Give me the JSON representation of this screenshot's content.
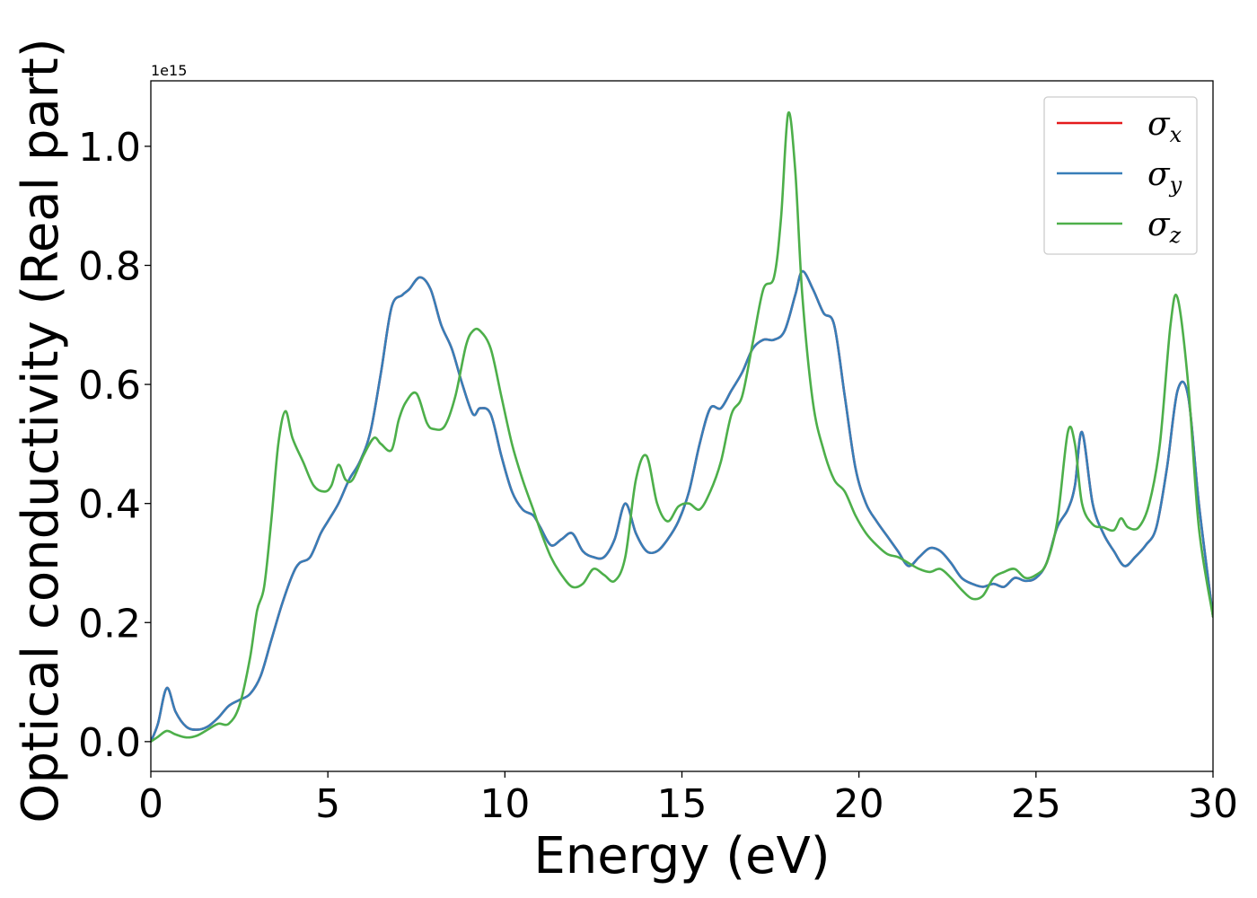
{
  "chart_data": {
    "type": "line",
    "xlabel": "Energy (eV)",
    "ylabel": "Optical conductivity (Real part)",
    "y_offset_label": "1e15",
    "xlim": [
      0,
      30
    ],
    "ylim": [
      -0.05,
      1.11
    ],
    "x_ticks": [
      0,
      5,
      10,
      15,
      20,
      25,
      30
    ],
    "x_tick_labels": [
      "0",
      "5",
      "10",
      "15",
      "20",
      "25",
      "30"
    ],
    "y_ticks": [
      0.0,
      0.2,
      0.4,
      0.6,
      0.8,
      1.0
    ],
    "y_tick_labels": [
      "0.0",
      "0.2",
      "0.4",
      "0.6",
      "0.8",
      "1.0"
    ],
    "grid": false,
    "legend_position": "top-right",
    "series": [
      {
        "name": "σx",
        "legend_symbol": "σ",
        "legend_subscript": "x",
        "color": "#e41a1c",
        "x": [
          0,
          0.2,
          0.45,
          0.7,
          1.0,
          1.3,
          1.6,
          1.9,
          2.2,
          2.5,
          2.8,
          3.1,
          3.4,
          3.7,
          4.0,
          4.2,
          4.5,
          4.8,
          5.0,
          5.3,
          5.6,
          5.9,
          6.2,
          6.5,
          6.8,
          7.1,
          7.3,
          7.6,
          7.9,
          8.2,
          8.5,
          8.8,
          9.1,
          9.3,
          9.6,
          9.9,
          10.2,
          10.5,
          10.8,
          11.0,
          11.3,
          11.6,
          11.9,
          12.2,
          12.5,
          12.8,
          13.1,
          13.4,
          13.7,
          14.0,
          14.3,
          14.6,
          14.9,
          15.2,
          15.5,
          15.8,
          16.1,
          16.4,
          16.7,
          17.0,
          17.3,
          17.6,
          17.9,
          18.2,
          18.4,
          18.7,
          19.0,
          19.3,
          19.6,
          19.9,
          20.2,
          20.5,
          20.8,
          21.1,
          21.4,
          21.7,
          22.0,
          22.3,
          22.6,
          22.9,
          23.2,
          23.5,
          23.8,
          24.1,
          24.4,
          24.7,
          25.0,
          25.3,
          25.6,
          25.9,
          26.1,
          26.3,
          26.6,
          26.9,
          27.2,
          27.5,
          27.8,
          28.1,
          28.4,
          28.7,
          29.0,
          29.3,
          29.6,
          30.0
        ],
        "values": [
          0.0,
          0.03,
          0.09,
          0.05,
          0.025,
          0.02,
          0.025,
          0.04,
          0.06,
          0.07,
          0.08,
          0.11,
          0.17,
          0.23,
          0.28,
          0.3,
          0.31,
          0.35,
          0.37,
          0.4,
          0.44,
          0.47,
          0.52,
          0.62,
          0.73,
          0.75,
          0.76,
          0.78,
          0.76,
          0.7,
          0.66,
          0.6,
          0.55,
          0.56,
          0.55,
          0.48,
          0.42,
          0.39,
          0.38,
          0.36,
          0.33,
          0.34,
          0.35,
          0.32,
          0.31,
          0.31,
          0.34,
          0.4,
          0.35,
          0.32,
          0.32,
          0.34,
          0.37,
          0.42,
          0.5,
          0.56,
          0.56,
          0.59,
          0.62,
          0.66,
          0.675,
          0.675,
          0.69,
          0.75,
          0.79,
          0.76,
          0.72,
          0.7,
          0.58,
          0.46,
          0.4,
          0.37,
          0.345,
          0.32,
          0.295,
          0.31,
          0.325,
          0.32,
          0.3,
          0.275,
          0.265,
          0.26,
          0.265,
          0.26,
          0.275,
          0.27,
          0.275,
          0.3,
          0.36,
          0.39,
          0.43,
          0.52,
          0.4,
          0.35,
          0.32,
          0.295,
          0.31,
          0.33,
          0.36,
          0.46,
          0.59,
          0.58,
          0.4,
          0.21
        ]
      },
      {
        "name": "σy",
        "legend_symbol": "σ",
        "legend_subscript": "y",
        "color": "#377eb8",
        "x": [
          0,
          0.2,
          0.45,
          0.7,
          1.0,
          1.3,
          1.6,
          1.9,
          2.2,
          2.5,
          2.8,
          3.1,
          3.4,
          3.7,
          4.0,
          4.2,
          4.5,
          4.8,
          5.0,
          5.3,
          5.6,
          5.9,
          6.2,
          6.5,
          6.8,
          7.1,
          7.3,
          7.6,
          7.9,
          8.2,
          8.5,
          8.8,
          9.1,
          9.3,
          9.6,
          9.9,
          10.2,
          10.5,
          10.8,
          11.0,
          11.3,
          11.6,
          11.9,
          12.2,
          12.5,
          12.8,
          13.1,
          13.4,
          13.7,
          14.0,
          14.3,
          14.6,
          14.9,
          15.2,
          15.5,
          15.8,
          16.1,
          16.4,
          16.7,
          17.0,
          17.3,
          17.6,
          17.9,
          18.2,
          18.4,
          18.7,
          19.0,
          19.3,
          19.6,
          19.9,
          20.2,
          20.5,
          20.8,
          21.1,
          21.4,
          21.7,
          22.0,
          22.3,
          22.6,
          22.9,
          23.2,
          23.5,
          23.8,
          24.1,
          24.4,
          24.7,
          25.0,
          25.3,
          25.6,
          25.9,
          26.1,
          26.3,
          26.6,
          26.9,
          27.2,
          27.5,
          27.8,
          28.1,
          28.4,
          28.7,
          29.0,
          29.3,
          29.6,
          30.0
        ],
        "values": [
          0.0,
          0.03,
          0.09,
          0.05,
          0.025,
          0.02,
          0.025,
          0.04,
          0.06,
          0.07,
          0.08,
          0.11,
          0.17,
          0.23,
          0.28,
          0.3,
          0.31,
          0.35,
          0.37,
          0.4,
          0.44,
          0.47,
          0.52,
          0.62,
          0.73,
          0.75,
          0.76,
          0.78,
          0.76,
          0.7,
          0.66,
          0.6,
          0.55,
          0.56,
          0.55,
          0.48,
          0.42,
          0.39,
          0.38,
          0.36,
          0.33,
          0.34,
          0.35,
          0.32,
          0.31,
          0.31,
          0.34,
          0.4,
          0.35,
          0.32,
          0.32,
          0.34,
          0.37,
          0.42,
          0.5,
          0.56,
          0.56,
          0.59,
          0.62,
          0.66,
          0.675,
          0.675,
          0.69,
          0.75,
          0.79,
          0.76,
          0.72,
          0.7,
          0.58,
          0.46,
          0.4,
          0.37,
          0.345,
          0.32,
          0.295,
          0.31,
          0.325,
          0.32,
          0.3,
          0.275,
          0.265,
          0.26,
          0.265,
          0.26,
          0.275,
          0.27,
          0.275,
          0.3,
          0.36,
          0.39,
          0.43,
          0.52,
          0.4,
          0.35,
          0.32,
          0.295,
          0.31,
          0.33,
          0.36,
          0.46,
          0.59,
          0.58,
          0.4,
          0.21
        ]
      },
      {
        "name": "σz",
        "legend_symbol": "σ",
        "legend_subscript": "z",
        "color": "#4daf4a",
        "x": [
          0,
          0.2,
          0.45,
          0.7,
          1.0,
          1.3,
          1.6,
          1.9,
          2.2,
          2.5,
          2.8,
          3.0,
          3.2,
          3.4,
          3.6,
          3.8,
          4.0,
          4.3,
          4.6,
          4.9,
          5.1,
          5.3,
          5.5,
          5.7,
          6.0,
          6.3,
          6.5,
          6.8,
          7.0,
          7.2,
          7.5,
          7.8,
          8.0,
          8.3,
          8.6,
          8.9,
          9.1,
          9.3,
          9.6,
          9.9,
          10.2,
          10.5,
          10.8,
          11.0,
          11.3,
          11.6,
          11.9,
          12.2,
          12.5,
          12.8,
          13.1,
          13.4,
          13.7,
          14.0,
          14.3,
          14.6,
          14.9,
          15.2,
          15.5,
          15.8,
          16.1,
          16.4,
          16.7,
          17.0,
          17.3,
          17.6,
          17.8,
          18.0,
          18.2,
          18.4,
          18.7,
          19.0,
          19.3,
          19.6,
          19.9,
          20.2,
          20.5,
          20.8,
          21.1,
          21.4,
          21.7,
          22.0,
          22.3,
          22.6,
          22.9,
          23.2,
          23.5,
          23.8,
          24.1,
          24.4,
          24.7,
          25.0,
          25.3,
          25.6,
          25.9,
          26.1,
          26.3,
          26.6,
          26.9,
          27.2,
          27.4,
          27.6,
          27.9,
          28.2,
          28.5,
          28.8,
          29.0,
          29.3,
          29.6,
          30.0
        ],
        "values": [
          0.0,
          0.008,
          0.018,
          0.012,
          0.007,
          0.01,
          0.02,
          0.03,
          0.03,
          0.06,
          0.14,
          0.22,
          0.26,
          0.37,
          0.5,
          0.555,
          0.51,
          0.47,
          0.43,
          0.42,
          0.43,
          0.465,
          0.44,
          0.44,
          0.48,
          0.51,
          0.5,
          0.49,
          0.54,
          0.57,
          0.585,
          0.535,
          0.525,
          0.53,
          0.58,
          0.665,
          0.69,
          0.69,
          0.66,
          0.58,
          0.5,
          0.44,
          0.39,
          0.355,
          0.31,
          0.28,
          0.26,
          0.265,
          0.29,
          0.28,
          0.27,
          0.31,
          0.44,
          0.48,
          0.4,
          0.37,
          0.395,
          0.4,
          0.39,
          0.42,
          0.47,
          0.55,
          0.58,
          0.67,
          0.76,
          0.78,
          0.88,
          1.055,
          0.96,
          0.75,
          0.57,
          0.49,
          0.44,
          0.42,
          0.38,
          0.35,
          0.33,
          0.315,
          0.31,
          0.3,
          0.29,
          0.285,
          0.29,
          0.275,
          0.255,
          0.24,
          0.245,
          0.275,
          0.285,
          0.29,
          0.275,
          0.28,
          0.3,
          0.37,
          0.52,
          0.5,
          0.4,
          0.365,
          0.36,
          0.355,
          0.375,
          0.36,
          0.36,
          0.4,
          0.5,
          0.7,
          0.745,
          0.6,
          0.36,
          0.21
        ]
      }
    ]
  }
}
